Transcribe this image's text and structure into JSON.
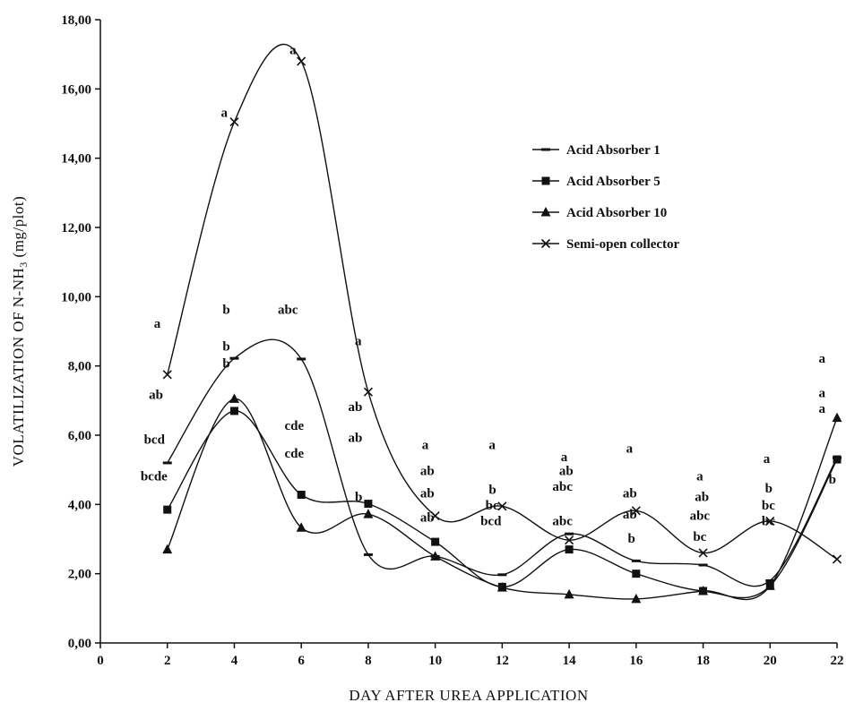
{
  "chart_data": {
    "type": "line",
    "xlabel": "DAY AFTER UREA APPLICATION",
    "ylabel": {
      "prefix": "VOLATILIZATION OF N-NH",
      "subscript": "3",
      "suffix": " (mg/plot)"
    },
    "xlim": [
      0,
      22
    ],
    "ylim": [
      0,
      18
    ],
    "x_ticks": [
      "0",
      "2",
      "4",
      "6",
      "8",
      "10",
      "12",
      "14",
      "16",
      "18",
      "20",
      "22"
    ],
    "y_ticks": [
      "0,00",
      "2,00",
      "4,00",
      "6,00",
      "8,00",
      "10,00",
      "12,00",
      "14,00",
      "16,00",
      "18,00"
    ],
    "grid": false,
    "legend_position": "right",
    "x": [
      2,
      4,
      6,
      8,
      10,
      12,
      14,
      16,
      18,
      20,
      22
    ],
    "series": [
      {
        "name": "Acid Absorber 1",
        "marker": "dash",
        "values": [
          5.2,
          8.22,
          8.2,
          2.55,
          2.5,
          1.97,
          3.15,
          2.37,
          2.25,
          1.8,
          5.35
        ]
      },
      {
        "name": "Acid Absorber 5",
        "marker": "square",
        "values": [
          3.85,
          6.7,
          4.28,
          4.02,
          2.92,
          1.62,
          2.7,
          2.0,
          1.5,
          1.65,
          5.3
        ]
      },
      {
        "name": "Acid Absorber 10",
        "marker": "triangle",
        "values": [
          2.7,
          7.05,
          3.33,
          3.72,
          2.5,
          1.6,
          1.4,
          1.27,
          1.5,
          1.65,
          6.5
        ]
      },
      {
        "name": "Semi-open collector",
        "marker": "cross",
        "values": [
          7.75,
          15.05,
          16.8,
          7.25,
          3.67,
          3.95,
          2.97,
          3.82,
          2.6,
          3.52,
          2.42
        ]
      }
    ],
    "annotations": [
      {
        "text": "a",
        "x": 1.6,
        "y": 9.1
      },
      {
        "text": "ab",
        "x": 1.45,
        "y": 7.05
      },
      {
        "text": "bcd",
        "x": 1.3,
        "y": 5.75
      },
      {
        "text": "bcde",
        "x": 1.2,
        "y": 4.7
      },
      {
        "text": "b",
        "x": 3.65,
        "y": 9.5
      },
      {
        "text": "b",
        "x": 3.65,
        "y": 8.45
      },
      {
        "text": "b",
        "x": 3.65,
        "y": 7.95
      },
      {
        "text": "a",
        "x": 3.6,
        "y": 15.2
      },
      {
        "text": "a",
        "x": 5.65,
        "y": 17.0
      },
      {
        "text": "abc",
        "x": 5.3,
        "y": 9.5
      },
      {
        "text": "cde",
        "x": 5.5,
        "y": 6.15
      },
      {
        "text": "cde",
        "x": 5.5,
        "y": 5.35
      },
      {
        "text": "a",
        "x": 7.6,
        "y": 8.6
      },
      {
        "text": "ab",
        "x": 7.4,
        "y": 6.7
      },
      {
        "text": "ab",
        "x": 7.4,
        "y": 5.8
      },
      {
        "text": "b",
        "x": 7.6,
        "y": 4.1
      },
      {
        "text": "a",
        "x": 9.6,
        "y": 5.6
      },
      {
        "text": "ab",
        "x": 9.55,
        "y": 4.85
      },
      {
        "text": "ab",
        "x": 9.55,
        "y": 4.2
      },
      {
        "text": "ab",
        "x": 9.55,
        "y": 3.5
      },
      {
        "text": "a",
        "x": 11.6,
        "y": 5.6
      },
      {
        "text": "b",
        "x": 11.6,
        "y": 4.3
      },
      {
        "text": "bc",
        "x": 11.5,
        "y": 3.85
      },
      {
        "text": "bcd",
        "x": 11.35,
        "y": 3.4
      },
      {
        "text": "a",
        "x": 13.75,
        "y": 5.25
      },
      {
        "text": "ab",
        "x": 13.7,
        "y": 4.85
      },
      {
        "text": "abc",
        "x": 13.5,
        "y": 4.4
      },
      {
        "text": "abc",
        "x": 13.5,
        "y": 3.4
      },
      {
        "text": "a",
        "x": 15.7,
        "y": 5.5
      },
      {
        "text": "ab",
        "x": 15.6,
        "y": 4.2
      },
      {
        "text": "ab",
        "x": 15.6,
        "y": 3.6
      },
      {
        "text": "b",
        "x": 15.75,
        "y": 2.9
      },
      {
        "text": "a",
        "x": 17.8,
        "y": 4.7
      },
      {
        "text": "ab",
        "x": 17.75,
        "y": 4.1
      },
      {
        "text": "abc",
        "x": 17.6,
        "y": 3.55
      },
      {
        "text": "bc",
        "x": 17.7,
        "y": 2.95
      },
      {
        "text": "a",
        "x": 19.8,
        "y": 5.2
      },
      {
        "text": "b",
        "x": 19.85,
        "y": 4.35
      },
      {
        "text": "bc",
        "x": 19.75,
        "y": 3.85
      },
      {
        "text": "bc",
        "x": 19.75,
        "y": 3.4
      },
      {
        "text": "a",
        "x": 21.45,
        "y": 8.1
      },
      {
        "text": "a",
        "x": 21.45,
        "y": 7.1
      },
      {
        "text": "a",
        "x": 21.45,
        "y": 6.65
      },
      {
        "text": "b",
        "x": 21.75,
        "y": 4.6
      }
    ]
  }
}
